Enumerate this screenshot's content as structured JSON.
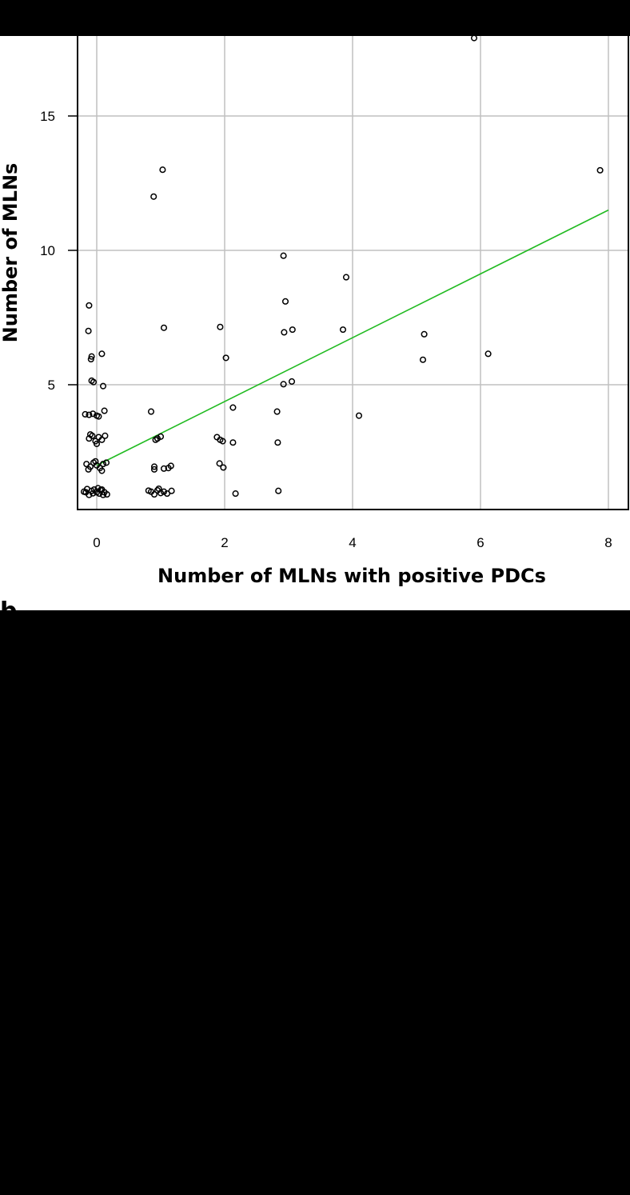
{
  "chart_data": {
    "type": "scatter",
    "xlabel": "Number of MLNs with positive PDCs",
    "ylabel": "Number of MLNs",
    "xticks": [
      0,
      2,
      4,
      6,
      8
    ],
    "yticks": [
      5,
      10,
      15
    ],
    "xlim": [
      -0.35,
      8.35
    ],
    "ylim": [
      0.5,
      18.1
    ],
    "grid": true,
    "panel_label": "b",
    "colors": {
      "background": "#ffffff",
      "grid": "#c0c0c0",
      "fit_line": "#22bb22",
      "points": "#000000",
      "frame": "#000000"
    },
    "fit_line": {
      "x": [
        0,
        8
      ],
      "y": [
        2.0,
        11.5
      ]
    },
    "points": [
      [
        -0.17,
        1.0
      ],
      [
        -0.12,
        0.9
      ],
      [
        -0.08,
        1.05
      ],
      [
        -0.04,
        1.1
      ],
      [
        0.0,
        1.0
      ],
      [
        0.04,
        0.95
      ],
      [
        0.08,
        1.1
      ],
      [
        0.12,
        1.0
      ],
      [
        0.16,
        0.92
      ],
      [
        -0.15,
        1.12
      ],
      [
        -0.06,
        0.96
      ],
      [
        0.06,
        1.08
      ],
      [
        0.1,
        0.9
      ],
      [
        -0.2,
        1.02
      ],
      [
        0.02,
        1.15
      ],
      [
        -0.16,
        2.05
      ],
      [
        -0.1,
        1.95
      ],
      [
        -0.05,
        2.1
      ],
      [
        0.0,
        2.0
      ],
      [
        0.05,
        1.9
      ],
      [
        0.1,
        2.05
      ],
      [
        0.15,
        2.1
      ],
      [
        -0.13,
        1.85
      ],
      [
        0.08,
        1.8
      ],
      [
        -0.02,
        2.15
      ],
      [
        -0.12,
        3.0
      ],
      [
        -0.07,
        3.1
      ],
      [
        -0.02,
        2.9
      ],
      [
        0.03,
        3.05
      ],
      [
        0.08,
        2.95
      ],
      [
        0.13,
        3.1
      ],
      [
        0.0,
        2.8
      ],
      [
        -0.1,
        3.15
      ],
      [
        -0.18,
        3.9
      ],
      [
        -0.12,
        3.88
      ],
      [
        -0.06,
        3.92
      ],
      [
        0.03,
        3.82
      ],
      [
        0.12,
        4.03
      ],
      [
        0.0,
        3.85
      ],
      [
        0.1,
        4.95
      ],
      [
        -0.08,
        5.15
      ],
      [
        -0.05,
        5.1
      ],
      [
        -0.08,
        6.05
      ],
      [
        -0.09,
        5.95
      ],
      [
        0.08,
        6.15
      ],
      [
        -0.13,
        7.0
      ],
      [
        -0.12,
        7.95
      ],
      [
        0.85,
        1.02
      ],
      [
        0.9,
        0.92
      ],
      [
        0.95,
        1.07
      ],
      [
        1.0,
        0.97
      ],
      [
        1.05,
        1.02
      ],
      [
        1.1,
        0.95
      ],
      [
        1.17,
        1.05
      ],
      [
        0.81,
        1.06
      ],
      [
        0.97,
        1.13
      ],
      [
        0.9,
        1.85
      ],
      [
        0.9,
        1.95
      ],
      [
        1.05,
        1.88
      ],
      [
        1.12,
        1.9
      ],
      [
        1.16,
        1.98
      ],
      [
        0.92,
        2.95
      ],
      [
        0.95,
        3.0
      ],
      [
        1.0,
        3.07
      ],
      [
        0.85,
        4.0
      ],
      [
        1.05,
        7.12
      ],
      [
        0.89,
        12.0
      ],
      [
        1.03,
        13.0
      ],
      [
        1.88,
        3.05
      ],
      [
        1.93,
        2.95
      ],
      [
        1.97,
        2.9
      ],
      [
        2.13,
        2.85
      ],
      [
        1.92,
        2.07
      ],
      [
        1.98,
        1.92
      ],
      [
        2.17,
        0.95
      ],
      [
        2.13,
        4.15
      ],
      [
        2.02,
        6.0
      ],
      [
        1.93,
        7.15
      ],
      [
        2.83,
        2.85
      ],
      [
        2.82,
        4.0
      ],
      [
        2.84,
        1.05
      ],
      [
        2.92,
        5.02
      ],
      [
        3.05,
        5.12
      ],
      [
        2.93,
        6.95
      ],
      [
        3.06,
        7.05
      ],
      [
        2.95,
        8.1
      ],
      [
        2.92,
        9.8
      ],
      [
        3.85,
        7.05
      ],
      [
        3.9,
        9.0
      ],
      [
        4.1,
        3.85
      ],
      [
        5.12,
        6.88
      ],
      [
        5.1,
        5.93
      ],
      [
        6.12,
        6.15
      ],
      [
        5.9,
        17.9
      ],
      [
        7.87,
        12.98
      ]
    ]
  }
}
